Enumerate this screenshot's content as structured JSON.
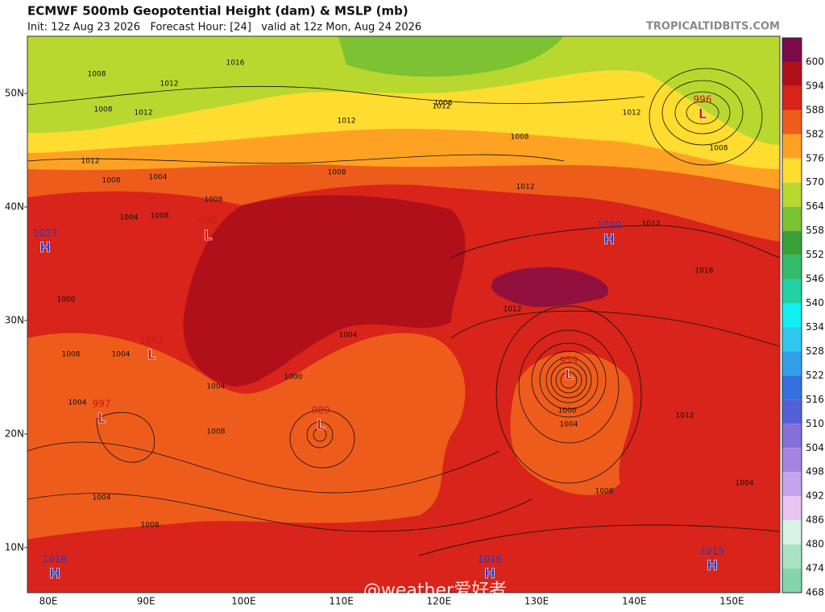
{
  "header": {
    "title": "ECMWF 500mb Geopotential Height (dam) & MSLP (mb)",
    "subtitle": "Init: 12z Aug 23 2026   Forecast Hour: [24]   valid at 12z Mon, Aug 24 2026",
    "source": "TROPICALTIDBITS.COM"
  },
  "colorbar": {
    "labels": [
      600,
      594,
      588,
      582,
      576,
      570,
      564,
      558,
      552,
      546,
      540,
      534,
      528,
      522,
      516,
      510,
      504,
      498,
      492,
      486,
      480,
      474,
      468
    ],
    "colors": [
      "#7a0a4a",
      "#b0101a",
      "#d8241a",
      "#ee5c1c",
      "#ffa224",
      "#ffdc30",
      "#b8d830",
      "#7cc232",
      "#38a238",
      "#34bb6c",
      "#22d2a4",
      "#10f0f0",
      "#30c8f0",
      "#30a0e8",
      "#3470e0",
      "#5460d8",
      "#8470d8",
      "#a484e0",
      "#c4a4ea",
      "#e8c4f2",
      "#d8f4e6",
      "#a8e4c4",
      "#84d4ac"
    ]
  },
  "axes": {
    "lat_labels": [
      "50N",
      "40N",
      "30N",
      "20N",
      "10N"
    ],
    "lon_labels": [
      "80E",
      "90E",
      "100E",
      "110E",
      "120E",
      "130E",
      "140E",
      "150E"
    ]
  },
  "centers": [
    {
      "value": "1027",
      "letter": "H"
    },
    {
      "value": "996",
      "letter": "L"
    },
    {
      "value": "1002",
      "letter": "L"
    },
    {
      "value": "997",
      "letter": "L"
    },
    {
      "value": "989",
      "letter": "L"
    },
    {
      "value": "959",
      "letter": "L"
    },
    {
      "value": "996",
      "letter": "L"
    },
    {
      "value": "1020",
      "letter": "H"
    },
    {
      "value": "1016",
      "letter": "H"
    },
    {
      "value": "1016",
      "letter": "H"
    },
    {
      "value": "1015",
      "letter": "H"
    }
  ],
  "isobar_labels": [
    "1016",
    "1008",
    "1012",
    "1012",
    "1008",
    "1012",
    "1008",
    "1004",
    "1008",
    "1008",
    "1004",
    "1008",
    "1000",
    "1004",
    "1008",
    "1004",
    "1012",
    "1008",
    "1012",
    "1008",
    "1012",
    "1004",
    "1000",
    "1004",
    "1008",
    "1004",
    "1008",
    "1012",
    "1016",
    "1012",
    "1012",
    "1008",
    "1004",
    "1008",
    "1012",
    "1000",
    "1004"
  ],
  "watermark": "@weather爱好者"
}
